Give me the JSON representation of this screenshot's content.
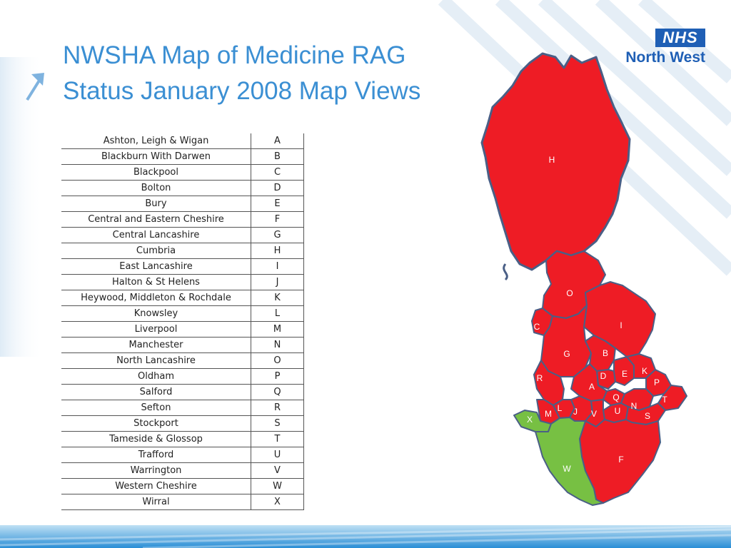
{
  "title": {
    "line1": "NWSHA Map of Medicine RAG",
    "line2": "Status January 2008 Map Views"
  },
  "logo": {
    "box_text": "NHS",
    "sub_text": "North West"
  },
  "legend": [
    {
      "area": "Ashton, Leigh & Wigan",
      "code": "A"
    },
    {
      "area": "Blackburn With Darwen",
      "code": "B"
    },
    {
      "area": "Blackpool",
      "code": "C"
    },
    {
      "area": "Bolton",
      "code": "D"
    },
    {
      "area": "Bury",
      "code": "E"
    },
    {
      "area": "Central and Eastern Cheshire",
      "code": "F"
    },
    {
      "area": "Central Lancashire",
      "code": "G"
    },
    {
      "area": "Cumbria",
      "code": "H"
    },
    {
      "area": "East Lancashire",
      "code": "I"
    },
    {
      "area": "Halton & St Helens",
      "code": "J"
    },
    {
      "area": "Heywood, Middleton & Rochdale",
      "code": "K"
    },
    {
      "area": "Knowsley",
      "code": "L"
    },
    {
      "area": "Liverpool",
      "code": "M"
    },
    {
      "area": "Manchester",
      "code": "N"
    },
    {
      "area": "North Lancashire",
      "code": "O"
    },
    {
      "area": "Oldham",
      "code": "P"
    },
    {
      "area": "Salford",
      "code": "Q"
    },
    {
      "area": "Sefton",
      "code": "R"
    },
    {
      "area": "Stockport",
      "code": "S"
    },
    {
      "area": "Tameside & Glossop",
      "code": "T"
    },
    {
      "area": "Trafford",
      "code": "U"
    },
    {
      "area": "Warrington",
      "code": "V"
    },
    {
      "area": "Western Cheshire",
      "code": "W"
    },
    {
      "area": "Wirral",
      "code": "X"
    }
  ],
  "map_status": {
    "A": "red",
    "B": "red",
    "C": "red",
    "D": "red",
    "E": "red",
    "F": "red",
    "G": "red",
    "H": "red",
    "I": "red",
    "J": "red",
    "K": "red",
    "L": "red",
    "M": "red",
    "N": "red",
    "O": "red",
    "P": "red",
    "Q": "red",
    "R": "red",
    "S": "red",
    "T": "red",
    "U": "red",
    "V": "red",
    "W": "green",
    "X": "green"
  },
  "colors": {
    "red": "#ee1c25",
    "green": "#77c043",
    "border": "#4a5f86",
    "title": "#3b8fd3",
    "nhs_blue": "#1f5fb5"
  }
}
